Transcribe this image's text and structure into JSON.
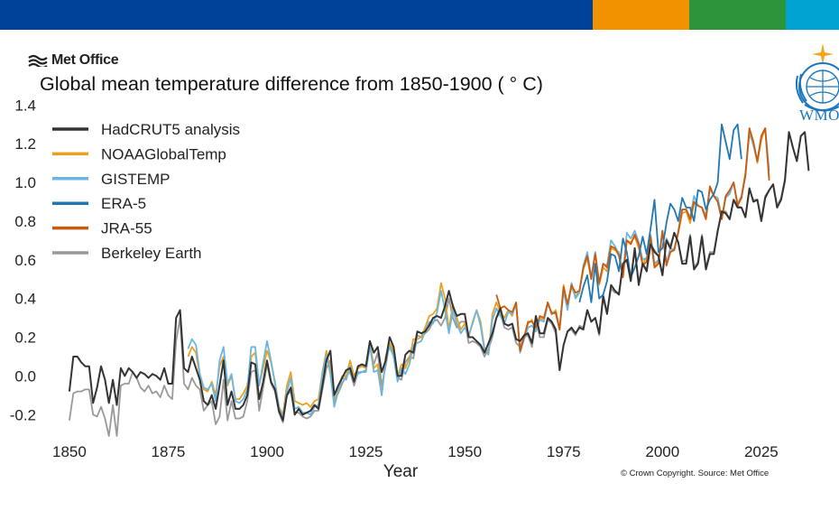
{
  "header": {
    "colors": [
      "#00429a",
      "#f39200",
      "#2e943c",
      "#00a3d2"
    ],
    "brand": "Met Office",
    "brand_icon": "met-office-waves-icon"
  },
  "wmo": {
    "label": "WMO",
    "icon": "wmo-emblem-icon"
  },
  "credit": "© Crown Copyright. Source: Met Office",
  "chart_data": {
    "type": "line",
    "title": "Global mean temperature difference from 1850-1900 ( ° C)",
    "xlabel": "Year",
    "ylabel": "",
    "xlim": [
      1845,
      2028
    ],
    "ylim": [
      -0.25,
      1.42
    ],
    "xticks": [
      1850,
      1875,
      1900,
      1925,
      1950,
      1975,
      2000,
      2025
    ],
    "yticks": [
      -0.2,
      0.0,
      0.2,
      0.4,
      0.6,
      0.8,
      1.0,
      1.2,
      1.4
    ],
    "ytick_labels": [
      "-0.2",
      "0.0",
      "0.2",
      "0.4",
      "0.6",
      "0.8",
      "1.0",
      "1.2",
      "1.4"
    ],
    "grid": false,
    "legend_position": "top-left",
    "series": [
      {
        "name": "HadCRUT5 analysis",
        "color": "#333333",
        "start": 1850,
        "values": [
          -0.08,
          0.1,
          0.1,
          0.07,
          0.05,
          0.05,
          -0.14,
          -0.06,
          0.05,
          -0.02,
          -0.14,
          -0.02,
          -0.15,
          0.04,
          0.0,
          0.04,
          0.02,
          -0.01,
          0.02,
          0.01,
          -0.01,
          0.01,
          0.0,
          -0.02,
          0.04,
          -0.04,
          -0.04,
          0.3,
          0.34,
          0.04,
          0.02,
          0.1,
          0.04,
          -0.02,
          -0.13,
          -0.15,
          -0.1,
          -0.17,
          -0.05,
          0.08,
          -0.15,
          -0.08,
          -0.17,
          -0.17,
          -0.15,
          -0.1,
          0.07,
          0.06,
          -0.12,
          -0.03,
          0.08,
          -0.03,
          -0.07,
          -0.18,
          -0.23,
          -0.1,
          -0.06,
          -0.2,
          -0.17,
          -0.2,
          -0.19,
          -0.18,
          -0.15,
          -0.17,
          -0.05,
          0.08,
          0.13,
          -0.1,
          -0.05,
          -0.01,
          0.03,
          0.04,
          -0.03,
          0.05,
          0.06,
          0.05,
          0.18,
          0.12,
          0.15,
          0.02,
          0.08,
          0.2,
          0.15,
          0.0,
          0.0,
          0.11,
          0.13,
          0.12,
          0.23,
          0.22,
          0.23,
          0.26,
          0.3,
          0.31,
          0.3,
          0.36,
          0.44,
          0.36,
          0.31,
          0.32,
          0.32,
          0.2,
          0.2,
          0.18,
          0.16,
          0.12,
          0.17,
          0.22,
          0.3,
          0.35,
          0.27,
          0.26,
          0.27,
          0.19,
          0.18,
          0.21,
          0.22,
          0.17,
          0.31,
          0.22,
          0.22,
          0.3,
          0.28,
          0.24,
          0.03,
          0.16,
          0.23,
          0.25,
          0.22,
          0.25,
          0.24,
          0.34,
          0.28,
          0.3,
          0.22,
          0.41,
          0.32,
          0.47,
          0.44,
          0.42,
          0.58,
          0.6,
          0.49,
          0.66,
          0.47,
          0.58,
          0.54,
          0.68,
          0.64,
          0.62,
          0.52,
          0.7,
          0.66,
          0.74,
          0.69,
          0.58,
          0.58,
          0.72,
          0.55,
          0.58,
          0.72,
          0.55,
          0.63,
          0.63,
          0.75,
          0.85,
          0.84,
          0.81,
          0.91,
          0.87,
          0.87,
          0.82,
          0.97,
          0.9,
          0.91,
          0.8,
          0.92,
          0.96,
          0.99,
          0.87,
          0.91,
          1.01,
          1.26,
          1.18,
          1.11,
          1.24,
          1.26,
          1.06
        ]
      },
      {
        "name": "NOAAGlobalTemp",
        "color": "#e9a21e",
        "start": 1880,
        "values": [
          0.1,
          0.15,
          0.12,
          0.0,
          -0.07,
          -0.08,
          -0.03,
          -0.1,
          0.05,
          0.1,
          -0.05,
          0.0,
          -0.12,
          -0.12,
          -0.09,
          -0.05,
          0.1,
          0.12,
          -0.05,
          0.04,
          0.13,
          0.07,
          -0.03,
          -0.16,
          -0.2,
          -0.05,
          0.02,
          -0.13,
          -0.14,
          -0.15,
          -0.14,
          -0.16,
          -0.13,
          -0.12,
          0.02,
          0.13,
          0.03,
          -0.15,
          -0.06,
          0.0,
          0.0,
          0.08,
          0.0,
          0.04,
          0.05,
          0.04,
          0.18,
          0.04,
          0.06,
          -0.1,
          0.1,
          0.17,
          0.13,
          0.0,
          0.06,
          0.04,
          0.09,
          0.19,
          0.19,
          0.2,
          0.25,
          0.31,
          0.32,
          0.35,
          0.48,
          0.4,
          0.24,
          0.37,
          0.3,
          0.24,
          0.27,
          0.2,
          0.28,
          0.34,
          0.28,
          0.14,
          0.12,
          0.32,
          0.38,
          0.33,
          0.3,
          0.34,
          0.31,
          0.38,
          0.12,
          0.2,
          0.27,
          0.29,
          0.23,
          0.3,
          0.29,
          0.38,
          0.32,
          0.34,
          0.24,
          0.47,
          0.36,
          0.46,
          0.41,
          0.44,
          0.55,
          0.61,
          0.5,
          0.64,
          0.47,
          0.56,
          0.54,
          0.66,
          0.65,
          0.64,
          0.51,
          0.7,
          0.69,
          0.72,
          0.66,
          0.58,
          0.61,
          0.73,
          0.56,
          0.6,
          0.74,
          0.58,
          0.64,
          0.66,
          0.74,
          0.84,
          0.85,
          0.79,
          0.89,
          0.88,
          0.87,
          0.81,
          0.97,
          0.93,
          0.9,
          0.81,
          0.92,
          0.95,
          1.0,
          0.89,
          0.93,
          1.05,
          1.25,
          1.2,
          1.1,
          1.22,
          1.28,
          1.02
        ]
      },
      {
        "name": "GISTEMP",
        "color": "#6bb6e0",
        "start": 1880,
        "values": [
          0.14,
          0.19,
          0.16,
          0.01,
          -0.06,
          -0.07,
          -0.04,
          -0.13,
          0.08,
          0.15,
          -0.04,
          0.01,
          -0.13,
          -0.14,
          -0.12,
          -0.07,
          0.15,
          0.15,
          -0.05,
          0.07,
          0.18,
          0.08,
          -0.04,
          -0.16,
          -0.22,
          -0.08,
          -0.01,
          -0.17,
          -0.16,
          -0.19,
          -0.19,
          -0.2,
          -0.16,
          -0.15,
          0.01,
          0.11,
          0.01,
          -0.16,
          -0.08,
          -0.01,
          -0.02,
          0.05,
          -0.03,
          0.01,
          0.02,
          0.02,
          0.16,
          0.02,
          0.03,
          -0.1,
          0.08,
          0.15,
          0.1,
          -0.03,
          0.04,
          0.01,
          0.06,
          0.16,
          0.17,
          0.18,
          0.23,
          0.28,
          0.27,
          0.33,
          0.44,
          0.34,
          0.22,
          0.34,
          0.27,
          0.22,
          0.25,
          0.21,
          0.27,
          0.34,
          0.26,
          0.13,
          0.11,
          0.29,
          0.35,
          0.31,
          0.27,
          0.33,
          0.32,
          0.37,
          0.12,
          0.19,
          0.25,
          0.26,
          0.23,
          0.29,
          0.28,
          0.37,
          0.33,
          0.32,
          0.24,
          0.44,
          0.34,
          0.48,
          0.4,
          0.43,
          0.57,
          0.64,
          0.51,
          0.64,
          0.48,
          0.58,
          0.57,
          0.7,
          0.67,
          0.63,
          0.52,
          0.74,
          0.71,
          0.75,
          0.69,
          0.6,
          0.61,
          0.73,
          0.58,
          0.6,
          0.75,
          0.58,
          0.66,
          0.65,
          0.75,
          0.86,
          0.86,
          0.82,
          0.93,
          0.88,
          0.87,
          0.83,
          0.97,
          0.93,
          0.92,
          0.82,
          0.92,
          0.94,
          1.0,
          0.88,
          0.93,
          1.03,
          1.27,
          1.19,
          1.11,
          1.24,
          1.28,
          1.06
        ]
      },
      {
        "name": "ERA-5",
        "color": "#1f77b4",
        "start": 1979,
        "values": [
          0.38,
          0.46,
          0.52,
          0.38,
          0.58,
          0.4,
          0.42,
          0.49,
          0.63,
          0.62,
          0.54,
          0.71,
          0.64,
          0.51,
          0.56,
          0.62,
          0.72,
          0.63,
          0.76,
          0.91,
          0.64,
          0.66,
          0.79,
          0.89,
          0.86,
          0.8,
          0.92,
          0.87,
          0.87,
          0.8,
          0.96,
          0.95,
          0.86,
          0.91,
          0.94,
          1.0,
          1.3,
          1.21,
          1.12,
          1.27,
          1.3,
          1.12
        ]
      },
      {
        "name": "JRA-55",
        "color": "#cc5a0e",
        "start": 1958,
        "values": [
          0.42,
          0.35,
          0.36,
          0.34,
          0.33,
          0.38,
          0.13,
          0.2,
          0.28,
          0.28,
          0.25,
          0.31,
          0.3,
          0.38,
          0.32,
          0.33,
          0.24,
          0.46,
          0.37,
          0.47,
          0.43,
          0.44,
          0.56,
          0.62,
          0.5,
          0.63,
          0.48,
          0.58,
          0.56,
          0.67,
          0.66,
          0.62,
          0.51,
          0.7,
          0.68,
          0.73,
          0.68,
          0.57,
          0.59,
          0.72,
          0.56,
          0.58,
          0.75,
          0.57,
          0.64,
          0.65,
          0.74,
          0.86,
          0.86,
          0.81,
          0.9,
          0.88,
          0.87,
          0.81,
          0.98,
          0.93,
          0.9,
          0.81,
          0.93,
          0.96,
          1.0,
          0.88,
          0.92,
          1.04,
          1.28,
          1.21,
          1.11,
          1.24,
          1.28,
          1.01
        ]
      },
      {
        "name": "Berkeley Earth",
        "color": "#999999",
        "start": 1850,
        "values": [
          -0.23,
          -0.09,
          -0.08,
          -0.08,
          -0.07,
          -0.07,
          -0.2,
          -0.21,
          -0.16,
          -0.22,
          -0.31,
          -0.15,
          -0.31,
          -0.05,
          -0.04,
          -0.04,
          0.02,
          -0.01,
          -0.06,
          -0.08,
          -0.05,
          -0.09,
          -0.08,
          -0.11,
          -0.05,
          -0.1,
          -0.12,
          0.18,
          0.3,
          -0.04,
          -0.07,
          -0.01,
          -0.05,
          -0.07,
          -0.18,
          -0.15,
          -0.13,
          -0.25,
          -0.21,
          -0.02,
          -0.23,
          -0.13,
          -0.22,
          -0.22,
          -0.21,
          -0.13,
          0.02,
          0.03,
          -0.18,
          -0.06,
          0.06,
          -0.04,
          -0.08,
          -0.19,
          -0.24,
          -0.1,
          -0.08,
          -0.19,
          -0.19,
          -0.21,
          -0.22,
          -0.21,
          -0.18,
          -0.18,
          -0.07,
          0.04,
          0.08,
          -0.12,
          -0.09,
          -0.04,
          0.0,
          0.02,
          -0.05,
          0.02,
          0.02,
          0.03,
          0.15,
          0.06,
          0.12,
          -0.05,
          0.05,
          0.17,
          0.12,
          -0.01,
          -0.02,
          0.07,
          0.1,
          0.09,
          0.21,
          0.2,
          0.22,
          0.24,
          0.28,
          0.29,
          0.26,
          0.3,
          0.4,
          0.3,
          0.25,
          0.28,
          0.28,
          0.17,
          0.18,
          0.17,
          0.15,
          0.1,
          0.14,
          0.2,
          0.3,
          0.33,
          0.25,
          0.24,
          0.25,
          0.17,
          0.15,
          0.2,
          0.21,
          0.15,
          0.29,
          0.2,
          0.2,
          0.29,
          0.27,
          0.22,
          0.03,
          0.16,
          0.23,
          0.24,
          0.21,
          0.26,
          0.25,
          0.34,
          0.28,
          0.3,
          0.21,
          0.42,
          0.33,
          0.45,
          0.43,
          0.43,
          0.57,
          0.6,
          0.5,
          0.65,
          0.48,
          0.58,
          0.55,
          0.68,
          0.65,
          0.62,
          0.52,
          0.71,
          0.67,
          0.74,
          0.69,
          0.59,
          0.6,
          0.73,
          0.56,
          0.59,
          0.73,
          0.56,
          0.64,
          0.64,
          0.75,
          0.85,
          0.85,
          0.81,
          0.91,
          0.88,
          0.87,
          0.82,
          0.96,
          0.91,
          0.91,
          0.81,
          0.93,
          0.96,
          0.99,
          0.88,
          0.92,
          1.02,
          1.26,
          1.18,
          1.11,
          1.24,
          1.26,
          1.07
        ]
      }
    ]
  }
}
